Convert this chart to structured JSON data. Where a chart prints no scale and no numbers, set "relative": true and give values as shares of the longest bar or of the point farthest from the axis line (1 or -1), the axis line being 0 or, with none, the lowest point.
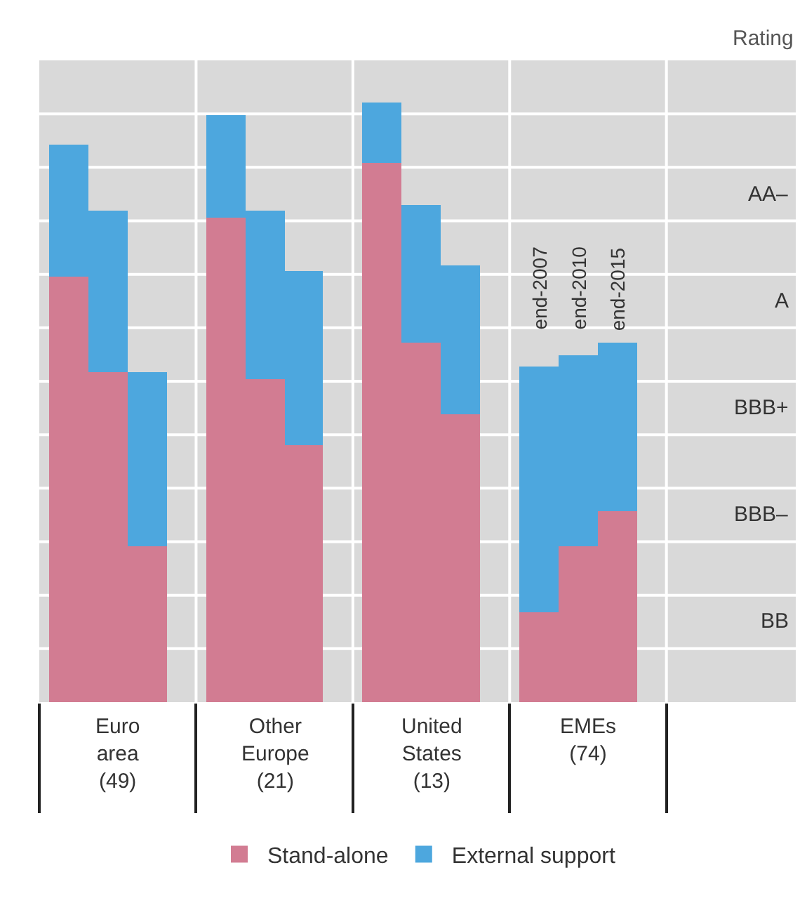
{
  "chart_data": {
    "type": "bar",
    "stacked": true,
    "relative": true,
    "ylabel": "Rating",
    "categories": [
      null,
      null,
      null,
      null,
      null,
      null,
      null,
      null,
      null,
      null,
      null,
      null
    ],
    "series": [
      {
        "name": "Stand-alone",
        "color": "#d27c92",
        "values": [
          0.71,
          0.55,
          0.26,
          0.81,
          0.54,
          0.43,
          0.9,
          0.6,
          0.48,
          0.15,
          0.26,
          0.32
        ]
      },
      {
        "name": "External support",
        "color": "#4da7de",
        "values": [
          0.22,
          0.27,
          0.29,
          0.17,
          0.28,
          0.29,
          0.1,
          0.23,
          0.25,
          0.41,
          0.32,
          0.28
        ]
      }
    ],
    "grid": "y",
    "legend": "bottom",
    "annotations": [
      "Euro\narea\n(49)",
      "Other\nEurope\n(21)",
      "United\nStates\n(13)",
      "EMEs\n(74)",
      "end-2007",
      "end-2010",
      "end-2015",
      "AA–",
      "A",
      "BBB+",
      "BBB–",
      "BB"
    ]
  }
}
